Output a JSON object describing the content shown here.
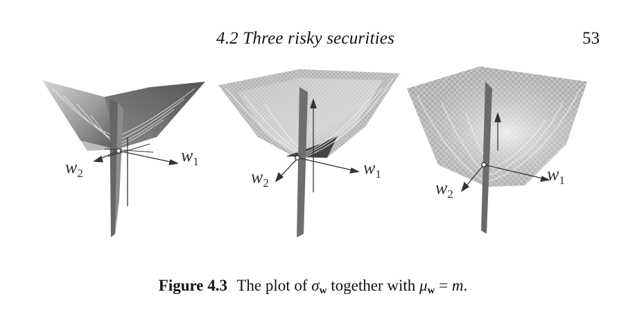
{
  "header": {
    "section_title": "4.2 Three risky securities",
    "page_number": "53"
  },
  "figure": {
    "panels": [
      {
        "axis_w1": {
          "base": "w",
          "sub": "1"
        },
        "axis_w2": {
          "base": "w",
          "sub": "2"
        }
      },
      {
        "axis_w1": {
          "base": "w",
          "sub": "1"
        },
        "axis_w2": {
          "base": "w",
          "sub": "2"
        }
      },
      {
        "axis_w1": {
          "base": "w",
          "sub": "1"
        },
        "axis_w2": {
          "base": "w",
          "sub": "2"
        }
      }
    ]
  },
  "caption": {
    "label": "Figure 4.3",
    "text_before": "The plot of",
    "sigma_symbol": "σ",
    "subscript": "w",
    "text_middle": "together with",
    "mu_symbol": "μ",
    "text_end": "=",
    "m_symbol": "m",
    "period": "."
  }
}
